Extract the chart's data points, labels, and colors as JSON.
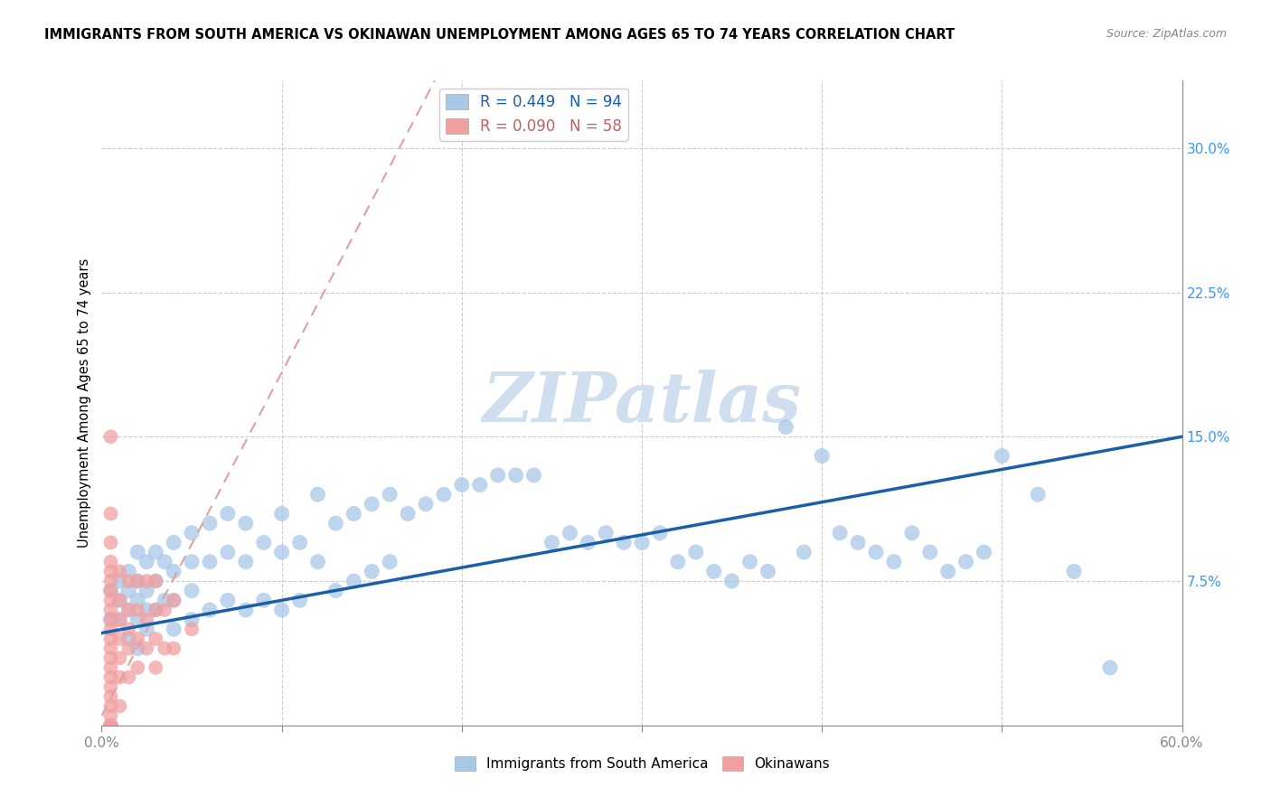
{
  "title": "IMMIGRANTS FROM SOUTH AMERICA VS OKINAWAN UNEMPLOYMENT AMONG AGES 65 TO 74 YEARS CORRELATION CHART",
  "source": "Source: ZipAtlas.com",
  "ylabel": "Unemployment Among Ages 65 to 74 years",
  "xlim": [
    0,
    0.6
  ],
  "ylim": [
    0,
    0.335
  ],
  "xtick_positions": [
    0.0,
    0.1,
    0.2,
    0.3,
    0.4,
    0.5,
    0.6
  ],
  "yticks_right": [
    0.075,
    0.15,
    0.225,
    0.3
  ],
  "ytickslabels_right": [
    "7.5%",
    "15.0%",
    "22.5%",
    "30.0%"
  ],
  "legend1_label": "R = 0.449   N = 94",
  "legend2_label": "R = 0.090   N = 58",
  "legend_group1": "Immigrants from South America",
  "legend_group2": "Okinawans",
  "blue_color": "#a8c8e8",
  "pink_color": "#f0a0a0",
  "trend_blue_color": "#1a5fa8",
  "trend_pink_color": "#e0a0a0",
  "blue_trend_start_x": 0.0,
  "blue_trend_start_y": 0.048,
  "blue_trend_end_x": 0.6,
  "blue_trend_end_y": 0.15,
  "pink_trend_start_x": 0.0,
  "pink_trend_start_y": 0.005,
  "pink_trend_end_x": 0.185,
  "pink_trend_end_y": 0.335,
  "watermark": "ZIPatlas",
  "watermark_color": "#d0dff0",
  "blue_scatter_x": [
    0.38,
    0.005,
    0.005,
    0.01,
    0.01,
    0.01,
    0.015,
    0.015,
    0.015,
    0.015,
    0.02,
    0.02,
    0.02,
    0.02,
    0.02,
    0.025,
    0.025,
    0.025,
    0.025,
    0.03,
    0.03,
    0.03,
    0.035,
    0.035,
    0.04,
    0.04,
    0.04,
    0.04,
    0.05,
    0.05,
    0.05,
    0.05,
    0.06,
    0.06,
    0.06,
    0.07,
    0.07,
    0.07,
    0.08,
    0.08,
    0.08,
    0.09,
    0.09,
    0.1,
    0.1,
    0.1,
    0.11,
    0.11,
    0.12,
    0.12,
    0.13,
    0.13,
    0.14,
    0.14,
    0.15,
    0.15,
    0.16,
    0.16,
    0.17,
    0.18,
    0.19,
    0.2,
    0.21,
    0.22,
    0.23,
    0.24,
    0.25,
    0.26,
    0.27,
    0.28,
    0.29,
    0.3,
    0.31,
    0.32,
    0.33,
    0.34,
    0.35,
    0.36,
    0.37,
    0.39,
    0.4,
    0.41,
    0.42,
    0.43,
    0.44,
    0.45,
    0.46,
    0.47,
    0.48,
    0.49,
    0.5,
    0.52,
    0.54,
    0.56
  ],
  "blue_scatter_y": [
    0.155,
    0.07,
    0.055,
    0.075,
    0.065,
    0.055,
    0.08,
    0.07,
    0.06,
    0.045,
    0.09,
    0.075,
    0.065,
    0.055,
    0.04,
    0.085,
    0.07,
    0.06,
    0.05,
    0.09,
    0.075,
    0.06,
    0.085,
    0.065,
    0.095,
    0.08,
    0.065,
    0.05,
    0.1,
    0.085,
    0.07,
    0.055,
    0.105,
    0.085,
    0.06,
    0.11,
    0.09,
    0.065,
    0.105,
    0.085,
    0.06,
    0.095,
    0.065,
    0.11,
    0.09,
    0.06,
    0.095,
    0.065,
    0.12,
    0.085,
    0.105,
    0.07,
    0.11,
    0.075,
    0.115,
    0.08,
    0.12,
    0.085,
    0.11,
    0.115,
    0.12,
    0.125,
    0.125,
    0.13,
    0.13,
    0.13,
    0.095,
    0.1,
    0.095,
    0.1,
    0.095,
    0.095,
    0.1,
    0.085,
    0.09,
    0.08,
    0.075,
    0.085,
    0.08,
    0.09,
    0.14,
    0.1,
    0.095,
    0.09,
    0.085,
    0.1,
    0.09,
    0.08,
    0.085,
    0.09,
    0.14,
    0.12,
    0.08,
    0.03
  ],
  "pink_scatter_x": [
    0.005,
    0.005,
    0.005,
    0.005,
    0.005,
    0.005,
    0.005,
    0.005,
    0.005,
    0.005,
    0.005,
    0.005,
    0.005,
    0.005,
    0.005,
    0.005,
    0.005,
    0.005,
    0.005,
    0.005,
    0.005,
    0.005,
    0.005,
    0.005,
    0.005,
    0.005,
    0.005,
    0.005,
    0.005,
    0.005,
    0.01,
    0.01,
    0.01,
    0.01,
    0.01,
    0.01,
    0.01,
    0.015,
    0.015,
    0.015,
    0.015,
    0.015,
    0.02,
    0.02,
    0.02,
    0.02,
    0.025,
    0.025,
    0.025,
    0.03,
    0.03,
    0.03,
    0.03,
    0.035,
    0.035,
    0.04,
    0.04,
    0.05
  ],
  "pink_scatter_y": [
    0.15,
    0.11,
    0.095,
    0.085,
    0.08,
    0.075,
    0.07,
    0.065,
    0.06,
    0.055,
    0.05,
    0.045,
    0.04,
    0.035,
    0.03,
    0.025,
    0.02,
    0.015,
    0.01,
    0.005,
    0.0,
    0.0,
    0.0,
    0.0,
    0.0,
    0.0,
    0.0,
    0.0,
    0.0,
    0.0,
    0.08,
    0.065,
    0.055,
    0.045,
    0.035,
    0.025,
    0.01,
    0.075,
    0.06,
    0.05,
    0.04,
    0.025,
    0.075,
    0.06,
    0.045,
    0.03,
    0.075,
    0.055,
    0.04,
    0.075,
    0.06,
    0.045,
    0.03,
    0.06,
    0.04,
    0.065,
    0.04,
    0.05
  ]
}
